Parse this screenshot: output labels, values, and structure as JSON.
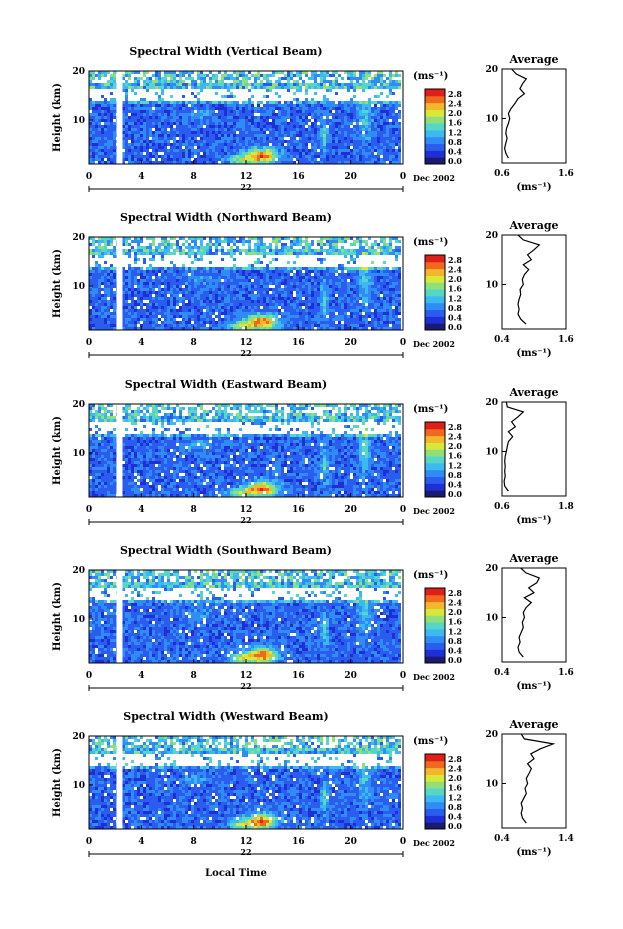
{
  "x_axis_label": "Local Time",
  "colors": {
    "colormap": [
      "#1a1a70",
      "#1e2fd6",
      "#2a5cf0",
      "#2f8cf5",
      "#3cb9f0",
      "#55d6c8",
      "#8fe07a",
      "#d6e83a",
      "#f4b62a",
      "#f06a1e",
      "#e02018"
    ],
    "background": "#ffffff",
    "axis": "#000000"
  },
  "chart_data": [
    {
      "type": "heatmap",
      "title": "Spectral Width (Vertical Beam)",
      "ylabel": "Height (km)",
      "xlabel": "",
      "x_ticks": [
        "0",
        "4",
        "8",
        "12",
        "16",
        "20",
        "0"
      ],
      "y_ticks": [
        "10",
        "20"
      ],
      "xlim": [
        0,
        24
      ],
      "ylim": [
        1,
        20
      ],
      "date_label_day": "22",
      "date_label_month": "Dec 2002",
      "colorbar": {
        "unit": "(ms⁻¹)",
        "ticks": [
          "2.8",
          "2.4",
          "2.0",
          "1.6",
          "1.2",
          "0.8",
          "0.4",
          "0.0"
        ]
      },
      "profile": {
        "title": "Average",
        "xlabel": "(ms⁻¹)",
        "x_ticks": [
          "0.6",
          "1.6"
        ],
        "xlim": [
          0.6,
          1.6
        ],
        "y_ticks": [
          "10",
          "20"
        ],
        "height_km": [
          2,
          3,
          4,
          5,
          6,
          7,
          8,
          9,
          10,
          11,
          12,
          13,
          14,
          15,
          16,
          17,
          18,
          19,
          20
        ],
        "width": [
          0.7,
          0.66,
          0.64,
          0.66,
          0.68,
          0.66,
          0.67,
          0.7,
          0.72,
          0.7,
          0.74,
          0.8,
          0.85,
          0.95,
          0.88,
          0.92,
          0.98,
          0.82,
          0.75
        ]
      }
    },
    {
      "type": "heatmap",
      "title": "Spectral Width (Northward Beam)",
      "ylabel": "Height (km)",
      "xlabel": "",
      "x_ticks": [
        "0",
        "4",
        "8",
        "12",
        "16",
        "20",
        "0"
      ],
      "y_ticks": [
        "10",
        "20"
      ],
      "xlim": [
        0,
        24
      ],
      "ylim": [
        1,
        20
      ],
      "date_label_day": "22",
      "date_label_month": "Dec 2002",
      "colorbar": {
        "unit": "(ms⁻¹)",
        "ticks": [
          "2.8",
          "2.4",
          "2.0",
          "1.6",
          "1.2",
          "0.8",
          "0.4",
          "0.0"
        ]
      },
      "profile": {
        "title": "Average",
        "xlabel": "(ms⁻¹)",
        "x_ticks": [
          "0.4",
          "1.6"
        ],
        "xlim": [
          0.4,
          1.6
        ],
        "y_ticks": [
          "10",
          "20"
        ],
        "height_km": [
          2,
          3,
          4,
          5,
          6,
          7,
          8,
          9,
          10,
          11,
          12,
          13,
          14,
          15,
          16,
          17,
          18,
          19,
          20
        ],
        "width": [
          0.85,
          0.75,
          0.7,
          0.72,
          0.7,
          0.72,
          0.75,
          0.74,
          0.8,
          0.78,
          0.82,
          0.9,
          0.8,
          0.95,
          0.88,
          1.0,
          1.1,
          0.8,
          0.7
        ]
      }
    },
    {
      "type": "heatmap",
      "title": "Spectral Width (Eastward Beam)",
      "ylabel": "Height (km)",
      "xlabel": "",
      "x_ticks": [
        "0",
        "4",
        "8",
        "12",
        "16",
        "20",
        "0"
      ],
      "y_ticks": [
        "10",
        "20"
      ],
      "xlim": [
        0,
        24
      ],
      "ylim": [
        1,
        20
      ],
      "date_label_day": "22",
      "date_label_month": "Dec 2002",
      "colorbar": {
        "unit": "(ms⁻¹)",
        "ticks": [
          "2.8",
          "2.4",
          "2.0",
          "1.6",
          "1.2",
          "0.8",
          "0.4",
          "0.0"
        ]
      },
      "profile": {
        "title": "Average",
        "xlabel": "(ms⁻¹)",
        "x_ticks": [
          "0.6",
          "1.8"
        ],
        "xlim": [
          0.6,
          1.8
        ],
        "y_ticks": [
          "10",
          "20"
        ],
        "height_km": [
          2,
          3,
          4,
          5,
          6,
          7,
          8,
          9,
          10,
          11,
          12,
          13,
          14,
          15,
          16,
          17,
          18,
          19,
          20
        ],
        "width": [
          0.72,
          0.65,
          0.64,
          0.66,
          0.65,
          0.66,
          0.65,
          0.66,
          0.68,
          0.7,
          0.72,
          0.8,
          0.72,
          0.85,
          0.78,
          0.9,
          1.0,
          0.7,
          0.68
        ]
      }
    },
    {
      "type": "heatmap",
      "title": "Spectral Width (Southward Beam)",
      "ylabel": "Height (km)",
      "xlabel": "",
      "x_ticks": [
        "0",
        "4",
        "8",
        "12",
        "16",
        "20",
        "0"
      ],
      "y_ticks": [
        "10",
        "20"
      ],
      "xlim": [
        0,
        24
      ],
      "ylim": [
        1,
        20
      ],
      "date_label_day": "22",
      "date_label_month": "Dec 2002",
      "colorbar": {
        "unit": "(ms⁻¹)",
        "ticks": [
          "2.8",
          "2.4",
          "2.0",
          "1.6",
          "1.2",
          "0.8",
          "0.4",
          "0.0"
        ]
      },
      "profile": {
        "title": "Average",
        "xlabel": "(ms⁻¹)",
        "x_ticks": [
          "0.4",
          "1.6"
        ],
        "xlim": [
          0.4,
          1.6
        ],
        "y_ticks": [
          "10",
          "20"
        ],
        "height_km": [
          2,
          3,
          4,
          5,
          6,
          7,
          8,
          9,
          10,
          11,
          12,
          13,
          14,
          15,
          16,
          17,
          18,
          19,
          20
        ],
        "width": [
          0.8,
          0.72,
          0.7,
          0.74,
          0.72,
          0.76,
          0.8,
          0.78,
          0.82,
          0.8,
          0.85,
          0.95,
          0.82,
          1.0,
          0.9,
          1.05,
          1.1,
          0.85,
          0.75
        ]
      }
    },
    {
      "type": "heatmap",
      "title": "Spectral Width (Westward Beam)",
      "ylabel": "Height (km)",
      "xlabel": "Local Time",
      "x_ticks": [
        "0",
        "4",
        "8",
        "12",
        "16",
        "20",
        "0"
      ],
      "y_ticks": [
        "10",
        "20"
      ],
      "xlim": [
        0,
        24
      ],
      "ylim": [
        1,
        20
      ],
      "date_label_day": "22",
      "date_label_month": "Dec 2002",
      "colorbar": {
        "unit": "(ms⁻¹)",
        "ticks": [
          "2.8",
          "2.4",
          "2.0",
          "1.6",
          "1.2",
          "0.8",
          "0.4",
          "0.0"
        ]
      },
      "profile": {
        "title": "Average",
        "xlabel": "(ms⁻¹)",
        "x_ticks": [
          "0.4",
          "1.4"
        ],
        "xlim": [
          0.4,
          1.4
        ],
        "y_ticks": [
          "10",
          "20"
        ],
        "height_km": [
          2,
          3,
          4,
          5,
          6,
          7,
          8,
          9,
          10,
          11,
          12,
          13,
          14,
          15,
          16,
          17,
          18,
          19,
          20
        ],
        "width": [
          0.78,
          0.72,
          0.7,
          0.72,
          0.7,
          0.74,
          0.78,
          0.76,
          0.8,
          0.78,
          0.82,
          0.86,
          0.8,
          0.9,
          0.85,
          1.0,
          1.2,
          0.75,
          0.7
        ]
      }
    }
  ]
}
